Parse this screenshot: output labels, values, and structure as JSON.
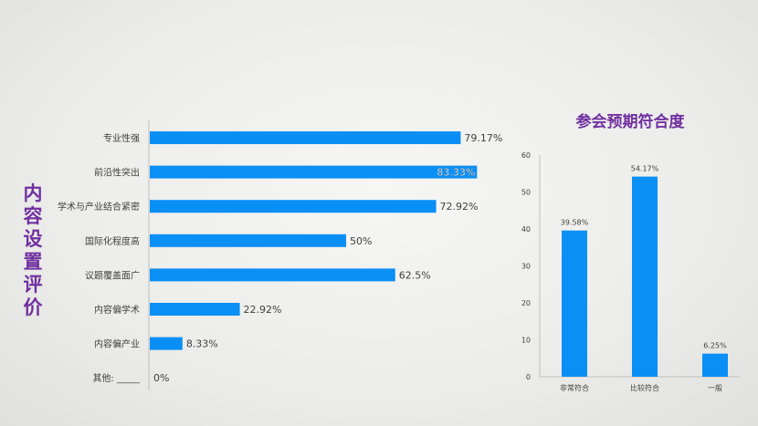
{
  "left_title": "内容设置评价",
  "right_title": "参会预期符合度",
  "chart_data": [
    {
      "type": "bar",
      "orientation": "horizontal",
      "title": "内容设置评价",
      "categories": [
        "专业性强",
        "前沿性突出",
        "学术与产业结合紧密",
        "国际化程度高",
        "议题覆盖面广",
        "内容偏学术",
        "内容偏产业",
        "其他: _____"
      ],
      "values": [
        79.17,
        83.33,
        72.92,
        50,
        62.5,
        22.92,
        8.33,
        0
      ],
      "value_labels": [
        "79.17%",
        "83.33%",
        "72.92%",
        "50%",
        "62.5%",
        "22.92%",
        "8.33%",
        "0%"
      ],
      "bar_color": "#0a8ff5",
      "grid": false
    },
    {
      "type": "bar",
      "orientation": "vertical",
      "title": "参会预期符合度",
      "categories": [
        "非常符合",
        "比较符合",
        "一般"
      ],
      "values": [
        39.58,
        54.17,
        6.25
      ],
      "value_labels": [
        "39.58%",
        "54.17%",
        "6.25%"
      ],
      "ylim": [
        0,
        60
      ],
      "yticks": [
        "0",
        "10",
        "20",
        "30",
        "40",
        "50",
        "60"
      ],
      "bar_color": "#0a8ff5",
      "grid": false
    }
  ]
}
